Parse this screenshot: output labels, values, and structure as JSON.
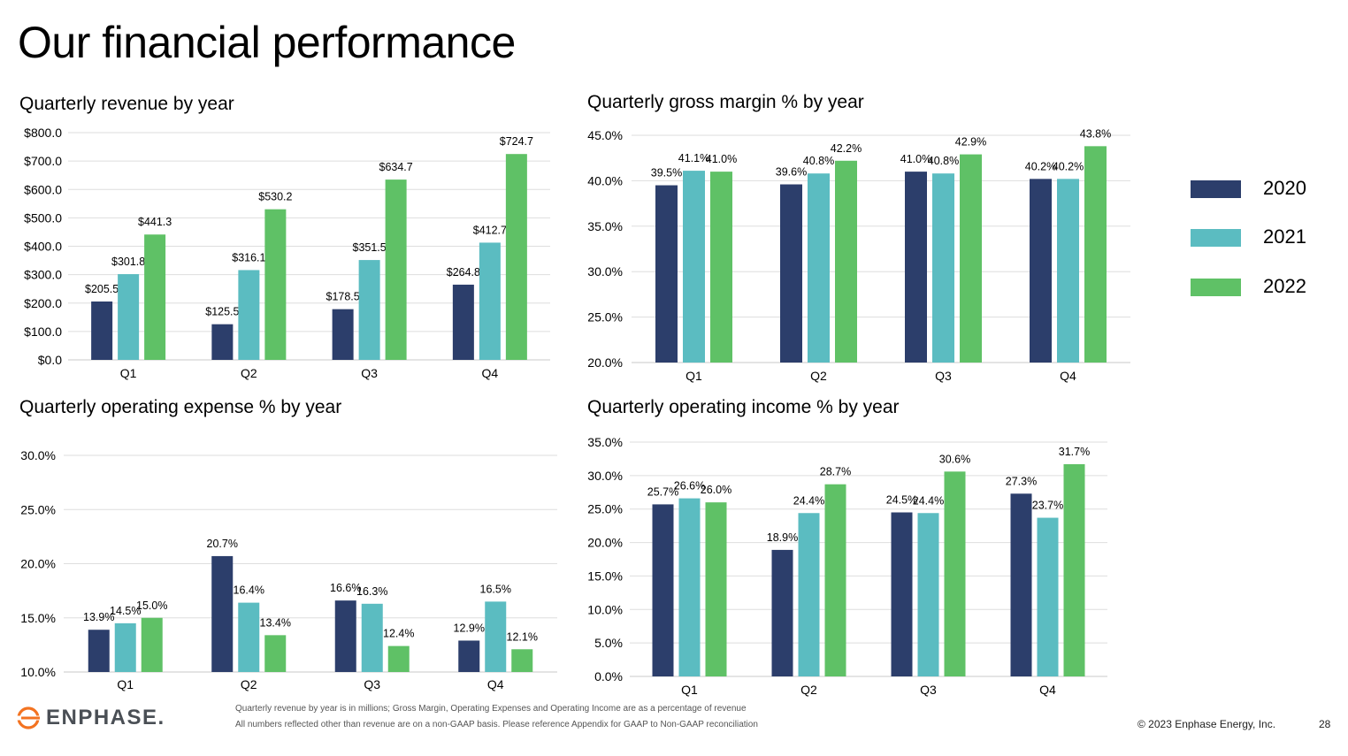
{
  "page": {
    "title": "Our financial performance",
    "footnotes": [
      "Quarterly revenue by year is in millions; Gross Margin, Operating Expenses and Operating Income are as a percentage of revenue",
      "All numbers reflected other than revenue are on a non-GAAP basis.  Please reference Appendix for GAAP to Non-GAAP reconciliation"
    ],
    "copyright": "© 2023 Enphase Energy, Inc.",
    "page_number": "28",
    "logo_text": "ENPHASE."
  },
  "legend": [
    {
      "label": "2020",
      "color": "#2c3e6b"
    },
    {
      "label": "2021",
      "color": "#5bbcc1"
    },
    {
      "label": "2022",
      "color": "#5fc166"
    }
  ],
  "colors": {
    "series": [
      "#2c3e6b",
      "#5bbcc1",
      "#5fc166"
    ],
    "grid": "#dedede",
    "text": "#000000"
  },
  "chart_data": [
    {
      "type": "bar",
      "title": "Quarterly revenue by year",
      "categories": [
        "Q1",
        "Q2",
        "Q3",
        "Q4"
      ],
      "ylim": [
        0,
        800
      ],
      "yticks": [
        0,
        100,
        200,
        300,
        400,
        500,
        600,
        700,
        800
      ],
      "ytick_labels": [
        "$0.0",
        "$100.0",
        "$200.0",
        "$300.0",
        "$400.0",
        "$500.0",
        "$600.0",
        "$700.0",
        "$800.0"
      ],
      "grid": true,
      "series": [
        {
          "name": "2020",
          "values": [
            205.5,
            125.5,
            178.5,
            264.8
          ],
          "labels": [
            "$205.5",
            "$125.5",
            "$178.5",
            "$264.8"
          ]
        },
        {
          "name": "2021",
          "values": [
            301.8,
            316.1,
            351.5,
            412.7
          ],
          "labels": [
            "$301.8",
            "$316.1",
            "$351.5",
            "$412.7"
          ]
        },
        {
          "name": "2022",
          "values": [
            441.3,
            530.2,
            634.7,
            724.7
          ],
          "labels": [
            "$441.3",
            "$530.2",
            "$634.7",
            "$724.7"
          ]
        }
      ]
    },
    {
      "type": "bar",
      "title": "Quarterly gross margin % by year",
      "categories": [
        "Q1",
        "Q2",
        "Q3",
        "Q4"
      ],
      "ylim": [
        20,
        45
      ],
      "yticks": [
        20,
        25,
        30,
        35,
        40,
        45
      ],
      "ytick_labels": [
        "20.0%",
        "25.0%",
        "30.0%",
        "35.0%",
        "40.0%",
        "45.0%"
      ],
      "grid": true,
      "series": [
        {
          "name": "2020",
          "values": [
            39.5,
            39.6,
            41.0,
            40.2
          ],
          "labels": [
            "39.5%",
            "39.6%",
            "41.0%",
            "40.2%"
          ]
        },
        {
          "name": "2021",
          "values": [
            41.1,
            40.8,
            40.8,
            40.2
          ],
          "labels": [
            "41.1%",
            "40.8%",
            "40.8%",
            "40.2%"
          ]
        },
        {
          "name": "2022",
          "values": [
            41.0,
            42.2,
            42.9,
            43.8
          ],
          "labels": [
            "41.0%",
            "42.2%",
            "42.9%",
            "43.8%"
          ]
        }
      ]
    },
    {
      "type": "bar",
      "title": "Quarterly operating expense % by year",
      "categories": [
        "Q1",
        "Q2",
        "Q3",
        "Q4"
      ],
      "ylim": [
        10,
        30
      ],
      "yticks": [
        10,
        15,
        20,
        25,
        30
      ],
      "ytick_labels": [
        "10.0%",
        "15.0%",
        "20.0%",
        "25.0%",
        "30.0%"
      ],
      "grid": true,
      "series": [
        {
          "name": "2020",
          "values": [
            13.9,
            20.7,
            16.6,
            12.9
          ],
          "labels": [
            "13.9%",
            "20.7%",
            "16.6%",
            "12.9%"
          ]
        },
        {
          "name": "2021",
          "values": [
            14.5,
            16.4,
            16.3,
            16.5
          ],
          "labels": [
            "14.5%",
            "16.4%",
            "16.3%",
            "16.5%"
          ]
        },
        {
          "name": "2022",
          "values": [
            15.0,
            13.4,
            12.4,
            12.1
          ],
          "labels": [
            "15.0%",
            "13.4%",
            "12.4%",
            "12.1%"
          ]
        }
      ]
    },
    {
      "type": "bar",
      "title": "Quarterly operating income % by year",
      "categories": [
        "Q1",
        "Q2",
        "Q3",
        "Q4"
      ],
      "ylim": [
        0,
        35
      ],
      "yticks": [
        0,
        5,
        10,
        15,
        20,
        25,
        30,
        35
      ],
      "ytick_labels": [
        "0.0%",
        "5.0%",
        "10.0%",
        "15.0%",
        "20.0%",
        "25.0%",
        "30.0%",
        "35.0%"
      ],
      "grid": true,
      "series": [
        {
          "name": "2020",
          "values": [
            25.7,
            18.9,
            24.5,
            27.3
          ],
          "labels": [
            "25.7%",
            "18.9%",
            "24.5%",
            "27.3%"
          ]
        },
        {
          "name": "2021",
          "values": [
            26.6,
            24.4,
            24.4,
            23.7
          ],
          "labels": [
            "26.6%",
            "24.4%",
            "24.4%",
            "23.7%"
          ]
        },
        {
          "name": "2022",
          "values": [
            26.0,
            28.7,
            30.6,
            31.7
          ],
          "labels": [
            "26.0%",
            "28.7%",
            "30.6%",
            "31.7%"
          ]
        }
      ]
    }
  ]
}
